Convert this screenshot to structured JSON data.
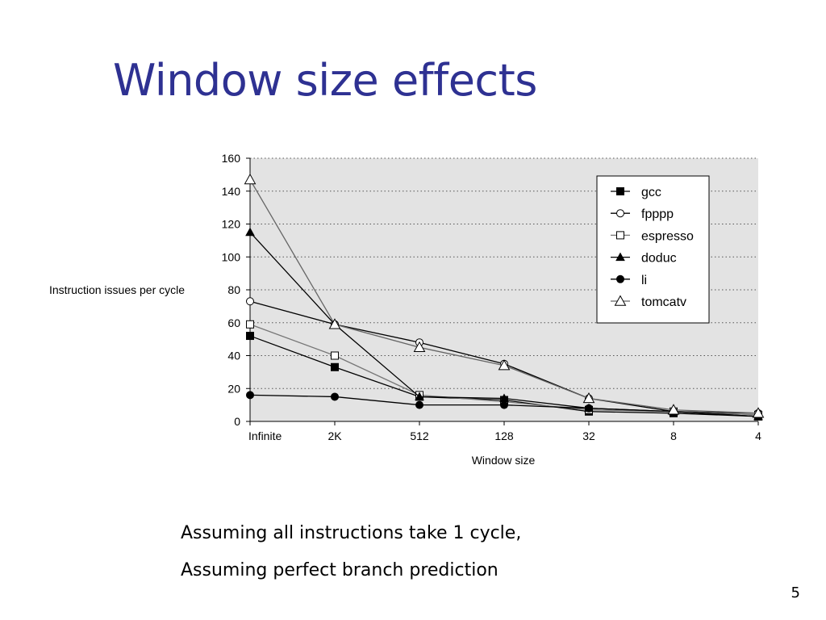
{
  "slide": {
    "title": "Window size effects",
    "notes": [
      "Assuming all instructions take 1 cycle,",
      "Assuming perfect branch prediction"
    ],
    "page_number": "5"
  },
  "chart_data": {
    "type": "line",
    "title": "",
    "xlabel": "Window size",
    "ylabel": "Instruction issues per cycle",
    "categories": [
      "Infinite",
      "2K",
      "512",
      "128",
      "32",
      "8",
      "4"
    ],
    "ylim": [
      0,
      160
    ],
    "yticks": [
      0,
      20,
      40,
      60,
      80,
      100,
      120,
      140,
      160
    ],
    "grid": "horizontal dotted",
    "legend_position": "top-right",
    "plot_background": "#e3e3e3",
    "series": [
      {
        "name": "gcc",
        "marker": "square-filled",
        "color": "#000000",
        "values": [
          52,
          33,
          15,
          13,
          6,
          5,
          3
        ]
      },
      {
        "name": "fpppp",
        "marker": "circle-open",
        "color": "#000000",
        "values": [
          73,
          59,
          48,
          35,
          14,
          6,
          5
        ]
      },
      {
        "name": "espresso",
        "marker": "square-open",
        "color": "#777777",
        "values": [
          59,
          40,
          16,
          12,
          7,
          6,
          4
        ]
      },
      {
        "name": "doduc",
        "marker": "triangle-filled",
        "color": "#000000",
        "values": [
          115,
          59,
          15,
          14,
          8,
          6,
          3
        ]
      },
      {
        "name": "li",
        "marker": "circle-filled",
        "color": "#000000",
        "values": [
          16,
          15,
          10,
          10,
          8,
          6,
          3
        ]
      },
      {
        "name": "tomcatv",
        "marker": "triangle-open",
        "color": "#666666",
        "values": [
          147,
          59,
          45,
          34,
          14,
          7,
          5
        ]
      }
    ]
  }
}
